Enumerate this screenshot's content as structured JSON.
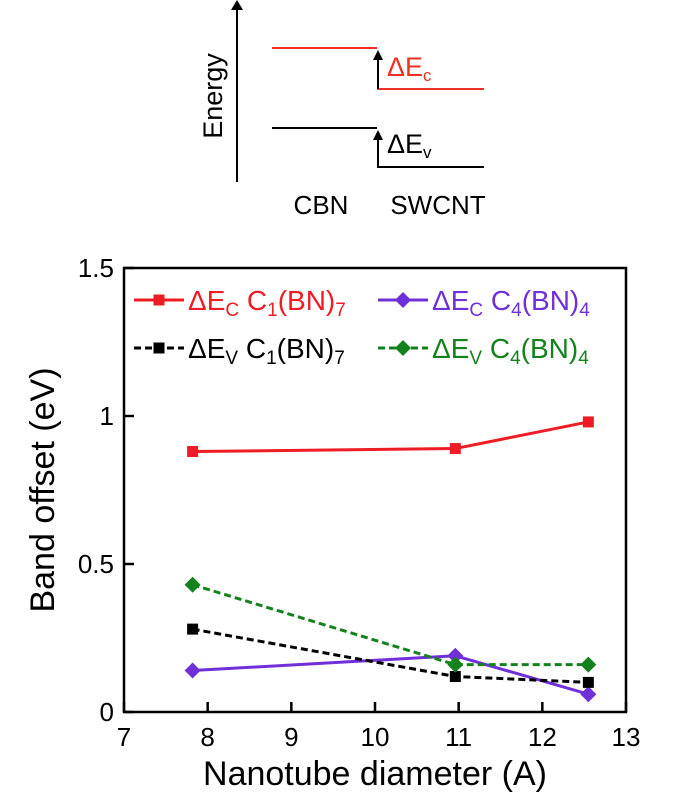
{
  "schematic": {
    "ylabel": "Energy",
    "delta_c": "ΔE",
    "delta_c_sub": "c",
    "delta_v": "ΔE",
    "delta_v_sub": "v",
    "left_label": "CBN",
    "right_label": "SWCNT",
    "colors": {
      "conduction": "#ee3124",
      "valence": "#000000"
    }
  },
  "chart_data": {
    "type": "line",
    "xlabel": "Nanotube diameter (A)",
    "ylabel": "Band offset (eV)",
    "xlim": [
      7,
      13
    ],
    "ylim": [
      0,
      1.5
    ],
    "xticks": [
      "7",
      "8",
      "9",
      "10",
      "11",
      "12",
      "13"
    ],
    "yticks": [
      "0",
      "0.5",
      "1",
      "1.5"
    ],
    "legend_position": "top",
    "series": [
      {
        "name": "ΔEC C1(BN)7",
        "label": {
          "sym": "ΔE",
          "sub": "C",
          "mid": " C",
          "sub1": "1",
          "mid2": "(BN)",
          "sub2": "7"
        },
        "color": "#ee1c24",
        "marker": "square",
        "dash": "solid",
        "x": [
          7.82,
          10.96,
          12.55
        ],
        "y": [
          0.88,
          0.89,
          0.98
        ]
      },
      {
        "name": "ΔEC C4(BN)4",
        "label": {
          "sym": "ΔE",
          "sub": "C",
          "mid": " C",
          "sub1": "4",
          "mid2": "(BN)",
          "sub2": "4"
        },
        "color": "#7030d8",
        "marker": "diamond",
        "dash": "solid",
        "x": [
          7.82,
          10.96,
          12.55
        ],
        "y": [
          0.14,
          0.19,
          0.06
        ]
      },
      {
        "name": "ΔEV C1(BN)7",
        "label": {
          "sym": "ΔE",
          "sub": "V",
          "mid": " C",
          "sub1": "1",
          "mid2": "(BN)",
          "sub2": "7"
        },
        "color": "#000000",
        "marker": "square",
        "dash": "dashed",
        "x": [
          7.82,
          10.96,
          12.55
        ],
        "y": [
          0.28,
          0.12,
          0.1
        ]
      },
      {
        "name": "ΔEV C4(BN)4",
        "label": {
          "sym": "ΔE",
          "sub": "V",
          "mid": " C",
          "sub1": "4",
          "mid2": "(BN)",
          "sub2": "4"
        },
        "color": "#14821c",
        "marker": "diamond",
        "dash": "dashed",
        "x": [
          7.82,
          10.96,
          12.55
        ],
        "y": [
          0.43,
          0.16,
          0.16
        ]
      }
    ]
  }
}
